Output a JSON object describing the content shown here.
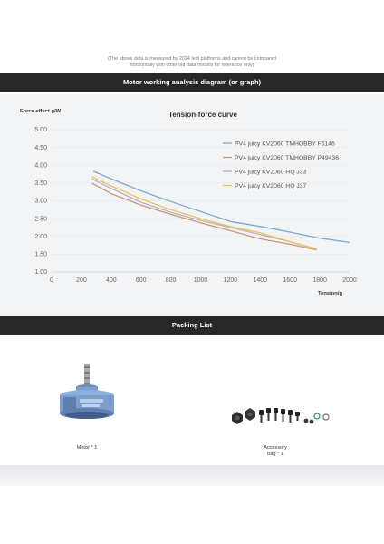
{
  "top_note": {
    "line1": "(The above data is measured by 2024 test platforms and cannot be compared",
    "line2": "horizontally with other old data models for reference only)"
  },
  "section1": {
    "title": "Motor working analysis diagram (or graph)"
  },
  "section2": {
    "title": "Packing List"
  },
  "packing": {
    "motor_label": "Motor * 1",
    "accessory_label_line1": "Accessory",
    "accessory_label_line2": "bag * 1"
  },
  "colors": {
    "header_bar": "#272727",
    "chart_bg": "#f3f4f6",
    "motor_blue": "#7c9fd0"
  },
  "chart_data": {
    "type": "line",
    "title": "Tension-force curve",
    "xlabel": "Tension/g",
    "ylabel": "Force effect g/W",
    "xlim": [
      0,
      2000
    ],
    "ylim": [
      1.0,
      5.0
    ],
    "xticks": [
      "0",
      "200",
      "400",
      "600",
      "800",
      "1000",
      "1200",
      "1400",
      "1600",
      "1800",
      "2000"
    ],
    "yticks": [
      "1.00",
      "1.50",
      "2.00",
      "2.50",
      "3.00",
      "3.50",
      "4.00",
      "4.50",
      "5.00"
    ],
    "legend_position": "top-right",
    "grid": "horizontal",
    "series": [
      {
        "name": "PV4 juicy KV2060 TMHOBBY F5146",
        "color": "#7aaccb",
        "x": [
          280,
          400,
          600,
          800,
          1000,
          1200,
          1400,
          1600,
          1800,
          2000
        ],
        "y": [
          3.83,
          3.62,
          3.28,
          2.98,
          2.7,
          2.42,
          2.28,
          2.12,
          1.95,
          1.83
        ]
      },
      {
        "name": "PV4 juicy KV2060 TMHOBBY P49436",
        "color": "#c6977a",
        "x": [
          270,
          400,
          600,
          800,
          1000,
          1200,
          1400,
          1600,
          1780
        ],
        "y": [
          3.5,
          3.2,
          2.88,
          2.62,
          2.38,
          2.16,
          1.93,
          1.78,
          1.62
        ]
      },
      {
        "name": "PV4 juicy KV2060 HQ J33",
        "color": "#b8b0c0",
        "x": [
          270,
          400,
          600,
          800,
          1000,
          1200,
          1400,
          1600,
          1780
        ],
        "y": [
          3.62,
          3.35,
          2.96,
          2.68,
          2.45,
          2.25,
          2.05,
          1.85,
          1.65
        ]
      },
      {
        "name": "PV4 juicy KV2060 HQ J37",
        "color": "#e8c45a",
        "x": [
          270,
          400,
          600,
          800,
          1000,
          1200,
          1400,
          1600,
          1780
        ],
        "y": [
          3.68,
          3.42,
          3.05,
          2.75,
          2.5,
          2.28,
          2.1,
          1.85,
          1.63
        ]
      }
    ]
  }
}
